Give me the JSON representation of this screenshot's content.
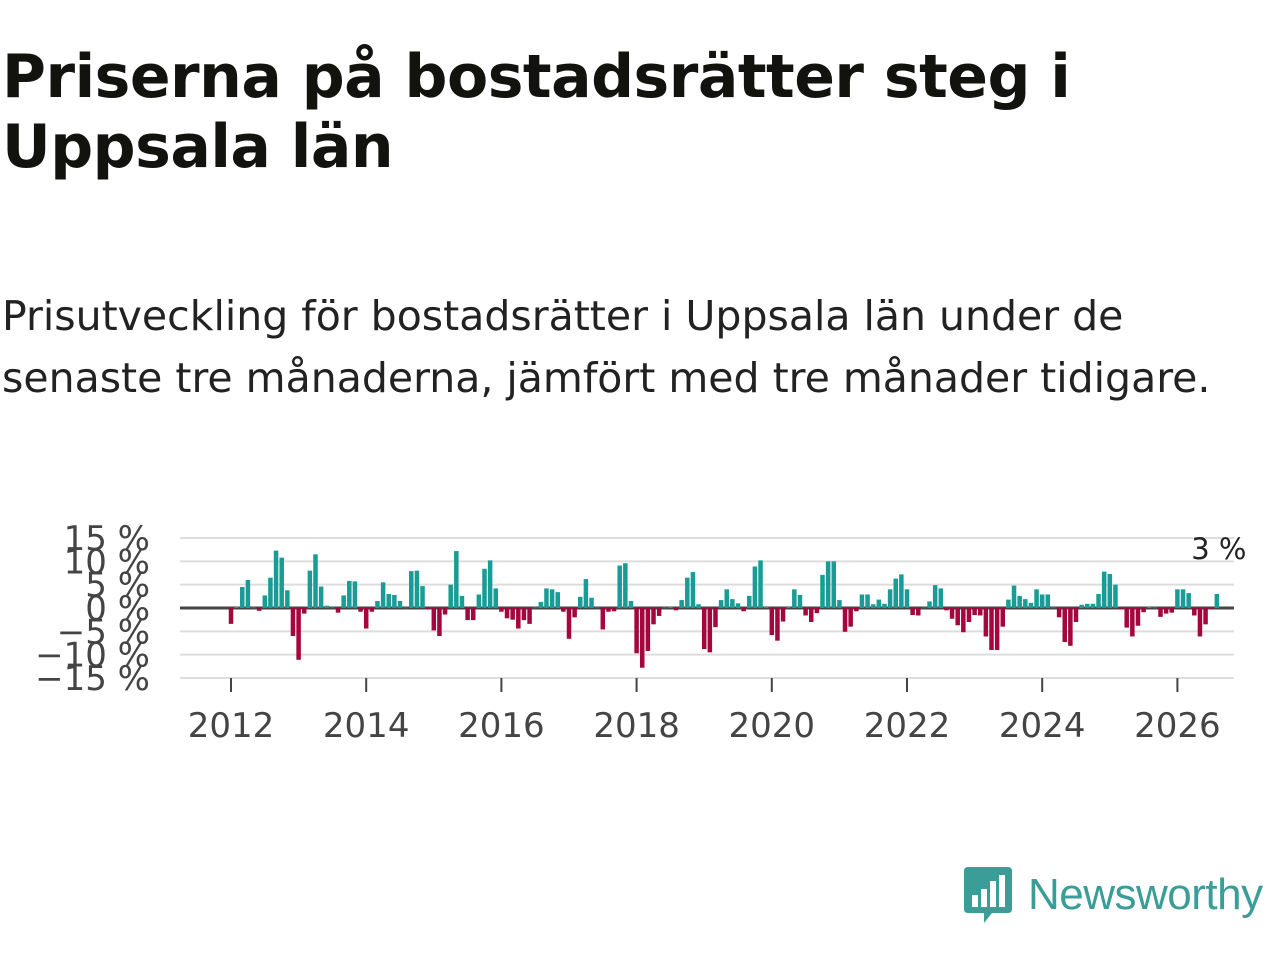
{
  "title": "Priserna på bostadsrätter steg i Uppsala län",
  "subtitle": "Prisutveckling för bostadsrätter i Uppsala län under de senaste tre månaderna, jämfört med tre månader tidigare.",
  "brand": {
    "name": "Newsworthy",
    "color": "#3a9d97"
  },
  "colors": {
    "positive": "#1a9c96",
    "negative": "#a3073e",
    "grid": "#dddddd",
    "zero_line": "#444444"
  },
  "chart_data": {
    "type": "bar",
    "title": "Priserna på bostadsrätter steg i Uppsala län",
    "xlabel": "",
    "ylabel": "",
    "start": {
      "year": 2012,
      "month": 1
    },
    "value_unit": "%",
    "ylim": [
      -15,
      15
    ],
    "y_ticks": [
      {
        "value": 15,
        "label": "15 %"
      },
      {
        "value": 10,
        "label": "10 %"
      },
      {
        "value": 5,
        "label": "5 %"
      },
      {
        "value": 0,
        "label": "0 %"
      },
      {
        "value": -5,
        "label": "−5 %"
      },
      {
        "value": -10,
        "label": "−10 %"
      },
      {
        "value": -15,
        "label": "−15 %"
      }
    ],
    "x_ticks": [
      "2012",
      "2014",
      "2016",
      "2018",
      "2020",
      "2022",
      "2024",
      "2026"
    ],
    "last_label": "3 %",
    "values": [
      -3.4,
      0.2,
      4.5,
      6.0,
      0.1,
      -0.6,
      2.7,
      6.5,
      12.3,
      10.8,
      3.8,
      -6.0,
      -11.1,
      -1.2,
      8.0,
      11.5,
      4.6,
      0.5,
      0.1,
      -1.0,
      2.7,
      5.8,
      5.7,
      -0.8,
      -4.4,
      -0.8,
      1.5,
      5.5,
      3.0,
      2.8,
      1.5,
      0.1,
      7.9,
      8.0,
      4.7,
      -0.3,
      -4.8,
      -6.0,
      -1.4,
      5.0,
      12.2,
      2.6,
      -2.6,
      -2.6,
      2.9,
      8.4,
      10.2,
      4.2,
      -0.8,
      -2.2,
      -2.5,
      -4.4,
      -2.6,
      -3.4,
      0.1,
      1.3,
      4.2,
      4.0,
      3.4,
      -0.8,
      -6.6,
      -2.0,
      2.4,
      6.2,
      2.2,
      0.1,
      -4.6,
      -0.8,
      -0.7,
      9.1,
      9.6,
      1.5,
      -9.7,
      -12.8,
      -9.2,
      -3.5,
      -1.7,
      0.1,
      0.2,
      -0.5,
      1.7,
      6.5,
      7.7,
      0.8,
      -8.8,
      -9.5,
      -4.1,
      1.7,
      4.0,
      1.9,
      1.0,
      -0.7,
      2.6,
      8.9,
      10.2,
      0.2,
      -5.8,
      -7.0,
      -2.9,
      0.2,
      4.0,
      2.8,
      -1.6,
      -3.0,
      -1.1,
      7.1,
      10.0,
      10.0,
      1.7,
      -5.1,
      -4.0,
      -0.7,
      2.9,
      2.9,
      0.8,
      1.8,
      0.9,
      4.0,
      6.3,
      7.2,
      4.0,
      -1.5,
      -1.6,
      0.1,
      1.4,
      4.9,
      4.2,
      -0.5,
      -2.3,
      -3.7,
      -5.2,
      -3.0,
      -1.5,
      -1.6,
      -6.1,
      -9.0,
      -9.0,
      -4.0,
      1.8,
      4.8,
      2.6,
      1.9,
      1.1,
      4.0,
      2.9,
      2.9,
      0.1,
      -2.0,
      -7.3,
      -8.1,
      -3.0,
      0.7,
      0.9,
      0.9,
      3.0,
      7.8,
      7.3,
      5.0,
      -0.3,
      -4.2,
      -6.1,
      -3.8,
      -0.9,
      0.2,
      0.1,
      -1.9,
      -1.2,
      -1.0,
      4.0,
      4.0,
      3.2,
      -1.6,
      -6.1,
      -3.5,
      -0.2,
      3.0
    ]
  }
}
